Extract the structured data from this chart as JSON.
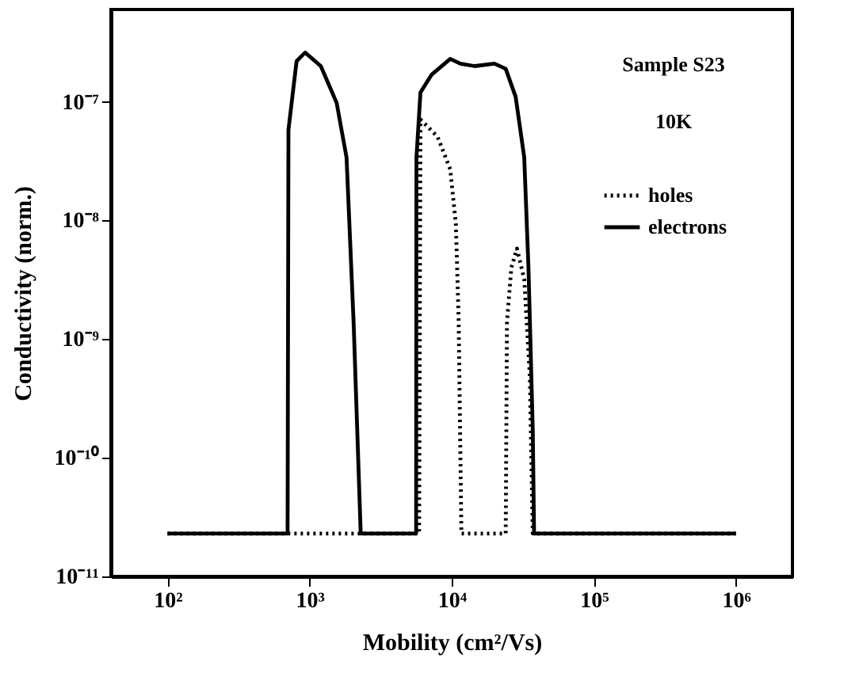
{
  "chart_data": {
    "type": "line",
    "xlabel": "Mobility (cm²/Vs)",
    "ylabel": "Conductivity (norm.)",
    "log": "xy",
    "grid": false,
    "legend": "top right",
    "marker": "none",
    "xlim": [
      40,
      2500000
    ],
    "xticks": [
      {
        "value": 100,
        "label": "10²"
      },
      {
        "value": 1000,
        "label": "10³"
      },
      {
        "value": 10000,
        "label": "10⁴"
      },
      {
        "value": 100000,
        "label": "10⁵"
      },
      {
        "value": 1000000,
        "label": "10⁶"
      }
    ],
    "ylim": [
      1e-11,
      6e-07
    ],
    "yticks": [
      {
        "value": 1e-11,
        "label": "10⁻¹¹"
      },
      {
        "value": 1e-10,
        "label": "10⁻¹⁰"
      },
      {
        "value": 1e-09,
        "label": "10⁻⁹"
      },
      {
        "value": 1e-08,
        "label": "10⁻⁸"
      },
      {
        "value": 1e-07,
        "label": "10⁻⁷"
      }
    ],
    "annotations": [
      "Sample S23",
      "10K"
    ],
    "series": [
      {
        "name": "holes",
        "color": "#000000",
        "line_style": "dotted",
        "x": [
          100,
          5900,
          6030,
          7940,
          9770,
          10700,
          11200,
          11700,
          24000,
          24500,
          26300,
          28800,
          32400,
          35500,
          37200,
          1000000
        ],
        "values": [
          2.3e-11,
          2.3e-11,
          7.1e-08,
          5.1e-08,
          2.7e-08,
          9.3e-09,
          1.4e-09,
          2.3e-11,
          2.3e-11,
          1.4e-09,
          4e-09,
          5.8e-09,
          3.2e-09,
          4.8e-10,
          2.3e-11,
          2.3e-11
        ]
      },
      {
        "name": "electrons",
        "color": "#000000",
        "line_style": "solid",
        "x": [
          100,
          700,
          710,
          810,
          930,
          1200,
          1550,
          1820,
          2040,
          2290,
          5620,
          5650,
          6030,
          7240,
          9770,
          11500,
          14500,
          20000,
          24000,
          28200,
          32400,
          34700,
          37200,
          38000,
          1000000
        ],
        "values": [
          2.3e-11,
          2.3e-11,
          5.8e-08,
          2.2e-07,
          2.6e-07,
          2e-07,
          9.8e-08,
          3.4e-08,
          1.4e-09,
          2.3e-11,
          2.3e-11,
          3.4e-08,
          1.2e-07,
          1.7e-07,
          2.3e-07,
          2.1e-07,
          2e-07,
          2.1e-07,
          1.9e-07,
          1.1e-07,
          3.4e-08,
          4e-09,
          1.7e-10,
          2.3e-11,
          2.3e-11
        ]
      }
    ]
  }
}
